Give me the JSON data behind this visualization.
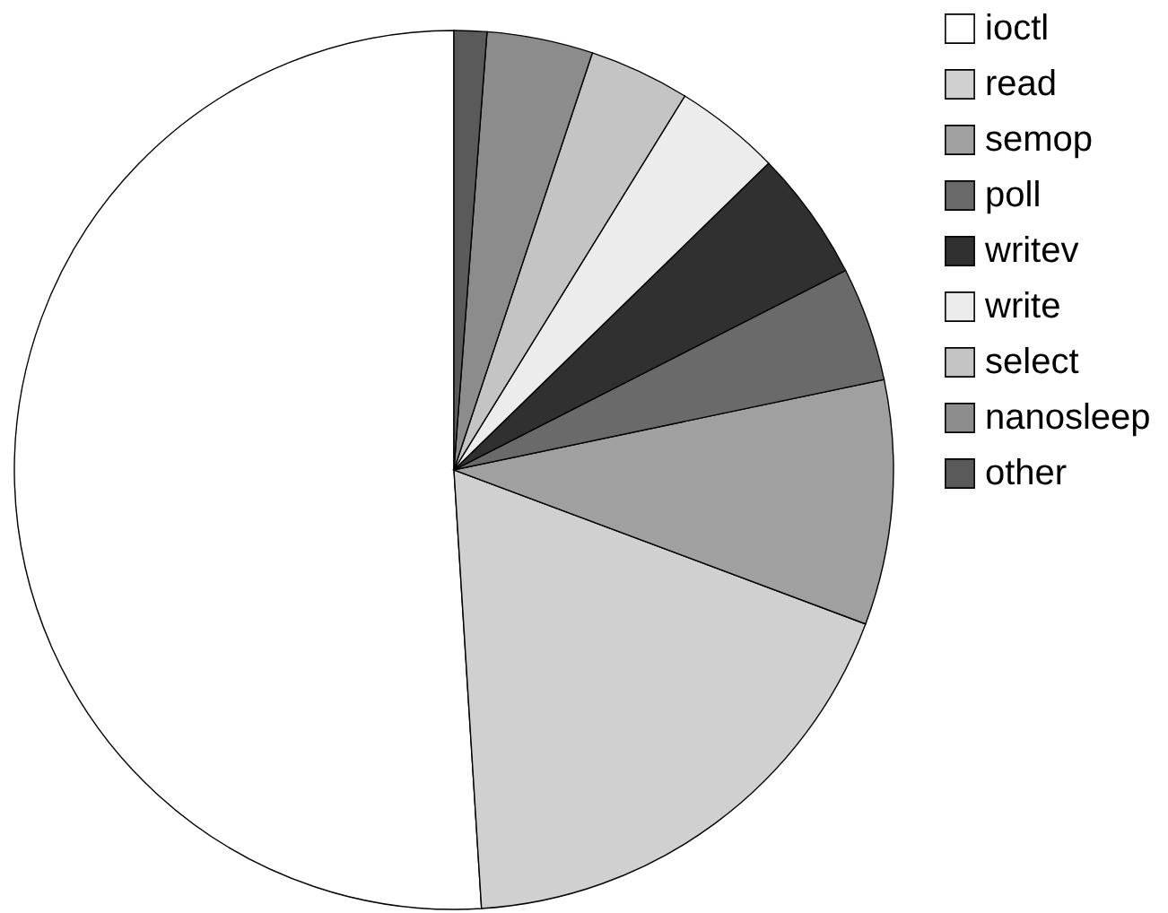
{
  "chart_data": {
    "type": "pie",
    "categories": [
      "ioctl",
      "read",
      "semop",
      "poll",
      "writev",
      "write",
      "select",
      "nanosleep",
      "other"
    ],
    "values": [
      51.0,
      18.3,
      9.0,
      4.2,
      4.8,
      3.9,
      3.7,
      3.9,
      1.2
    ],
    "colors": [
      "#ffffff",
      "#d0d0d0",
      "#a0a0a0",
      "#6a6a6a",
      "#303030",
      "#ececec",
      "#c4c4c4",
      "#8c8c8c",
      "#5a5a5a"
    ],
    "legend": "top right"
  }
}
